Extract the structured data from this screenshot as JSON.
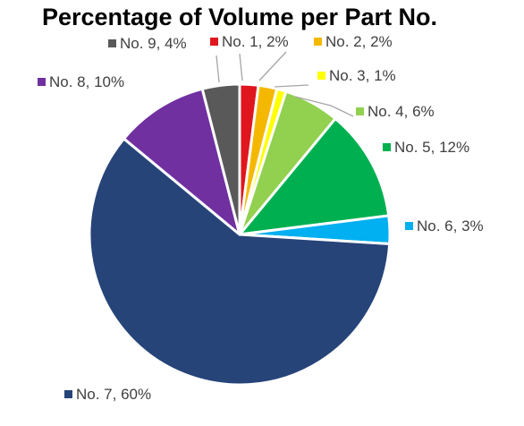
{
  "chart_data": {
    "type": "pie",
    "title": "Percentage of Volume per Part No.",
    "slices": [
      {
        "label": "No. 1, 2%",
        "category": "No. 1",
        "value": 2,
        "color": "#e0161e"
      },
      {
        "label": "No. 2, 2%",
        "category": "No. 2",
        "value": 2,
        "color": "#f5b800"
      },
      {
        "label": "No. 3, 1%",
        "category": "No. 3",
        "value": 1,
        "color": "#ffff00"
      },
      {
        "label": "No. 4, 6%",
        "category": "No. 4",
        "value": 6,
        "color": "#92d050"
      },
      {
        "label": "No. 5, 12%",
        "category": "No. 5",
        "value": 12,
        "color": "#00b050"
      },
      {
        "label": "No. 6, 3%",
        "category": "No. 6",
        "value": 3,
        "color": "#00b0f0"
      },
      {
        "label": "No. 7, 60%",
        "category": "No. 7",
        "value": 60,
        "color": "#264478"
      },
      {
        "label": "No. 8, 10%",
        "category": "No. 8",
        "value": 10,
        "color": "#7030a0"
      },
      {
        "label": "No. 9, 4%",
        "category": "No. 9",
        "value": 4,
        "color": "#595959"
      }
    ],
    "start_angle_deg": 0,
    "direction": "clockwise",
    "label_style": "outside with leader lines"
  }
}
